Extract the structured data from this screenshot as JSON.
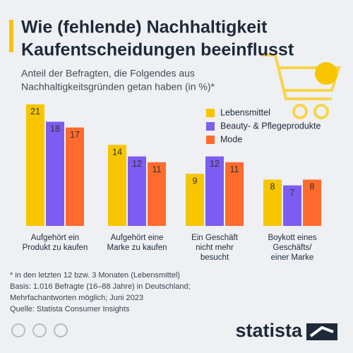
{
  "chart_data": {
    "type": "bar",
    "title": [
      "Wie (fehlende) Nachhaltigkeit",
      "Kaufentscheidungen beeinflusst"
    ],
    "subtitle": [
      "Anteil der Befragten, die Folgendes aus",
      "Nachhaltigkeitsgründen getan haben (in %)*"
    ],
    "categories": [
      [
        "Aufgehört ein",
        "Produkt zu kaufen"
      ],
      [
        "Aufgehört eine",
        "Marke zu kaufen"
      ],
      [
        "Ein Geschäft",
        "nicht mehr",
        "besucht"
      ],
      [
        "Boykott eines",
        "Geschäfts/",
        "einer Marke"
      ]
    ],
    "series": [
      {
        "name": "Lebensmittel",
        "color": "#f7c600",
        "values": [
          21,
          14,
          9,
          8
        ]
      },
      {
        "name": "Beauty- & Pflegeprodukte",
        "color": "#7d5cf2",
        "values": [
          18,
          12,
          12,
          7
        ]
      },
      {
        "name": "Mode",
        "color": "#ff6b2c",
        "values": [
          17,
          11,
          11,
          8
        ]
      }
    ],
    "legend": "upper right",
    "notes": [
      "* in den letzten 12 bzw. 3 Monaten (Lebensmittel)",
      "Basis: 1.016 Befragte (16–88 Jahre) in Deutschland;",
      "Mehrfachantworten möglich; Juni 2023",
      "Quelle: Statista Consumer Insights"
    ],
    "brand": "statista"
  }
}
